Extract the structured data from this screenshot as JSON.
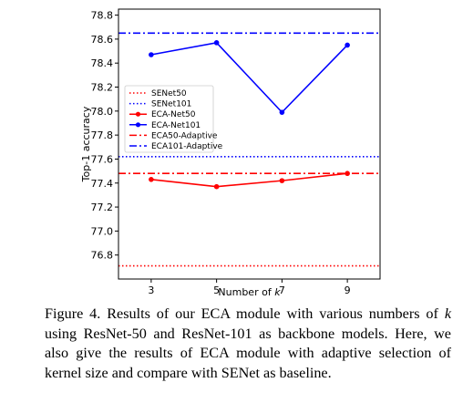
{
  "chart_data": {
    "type": "line",
    "xlabel": "Number of k",
    "ylabel": "Top-1 accuracy",
    "x": [
      3,
      5,
      7,
      9
    ],
    "xlim": [
      2,
      10
    ],
    "ylim": [
      76.6,
      78.85
    ],
    "xticks": [
      "3",
      "5",
      "7",
      "9"
    ],
    "yticks": [
      "76.8",
      "77.0",
      "77.2",
      "77.4",
      "77.6",
      "77.8",
      "78.0",
      "78.2",
      "78.4",
      "78.6",
      "78.8"
    ],
    "legend_position": "center-left",
    "grid": false,
    "series": [
      {
        "name": "ECA-Net50",
        "values": [
          77.43,
          77.37,
          77.42,
          77.48
        ],
        "color": "#ff0000",
        "style": "solid",
        "marker": "circle"
      },
      {
        "name": "ECA-Net101",
        "values": [
          78.47,
          78.57,
          77.99,
          78.55
        ],
        "color": "#0000ff",
        "style": "solid",
        "marker": "circle"
      }
    ],
    "reference_lines": [
      {
        "name": "SENet50",
        "value": 76.71,
        "color": "#ff0000",
        "style": "dotted"
      },
      {
        "name": "SENet101",
        "value": 77.62,
        "color": "#0000ff",
        "style": "dotted"
      },
      {
        "name": "ECA50-Adaptive",
        "value": 77.48,
        "color": "#ff0000",
        "style": "dashdot"
      },
      {
        "name": "ECA101-Adaptive",
        "value": 78.65,
        "color": "#0000ff",
        "style": "dashdot"
      }
    ],
    "legend_order": [
      "SENet50",
      "SENet101",
      "ECA-Net50",
      "ECA-Net101",
      "ECA50-Adaptive",
      "ECA101-Adaptive"
    ]
  },
  "caption": {
    "label": "Figure 4.",
    "text_before": " Results of our ECA module with various numbers of ",
    "variable": "k",
    "text_after": " using ResNet-50 and ResNet-101 as backbone models. Here, we also give the results of ECA module with adaptive selection of kernel size and compare with SENet as baseline."
  }
}
